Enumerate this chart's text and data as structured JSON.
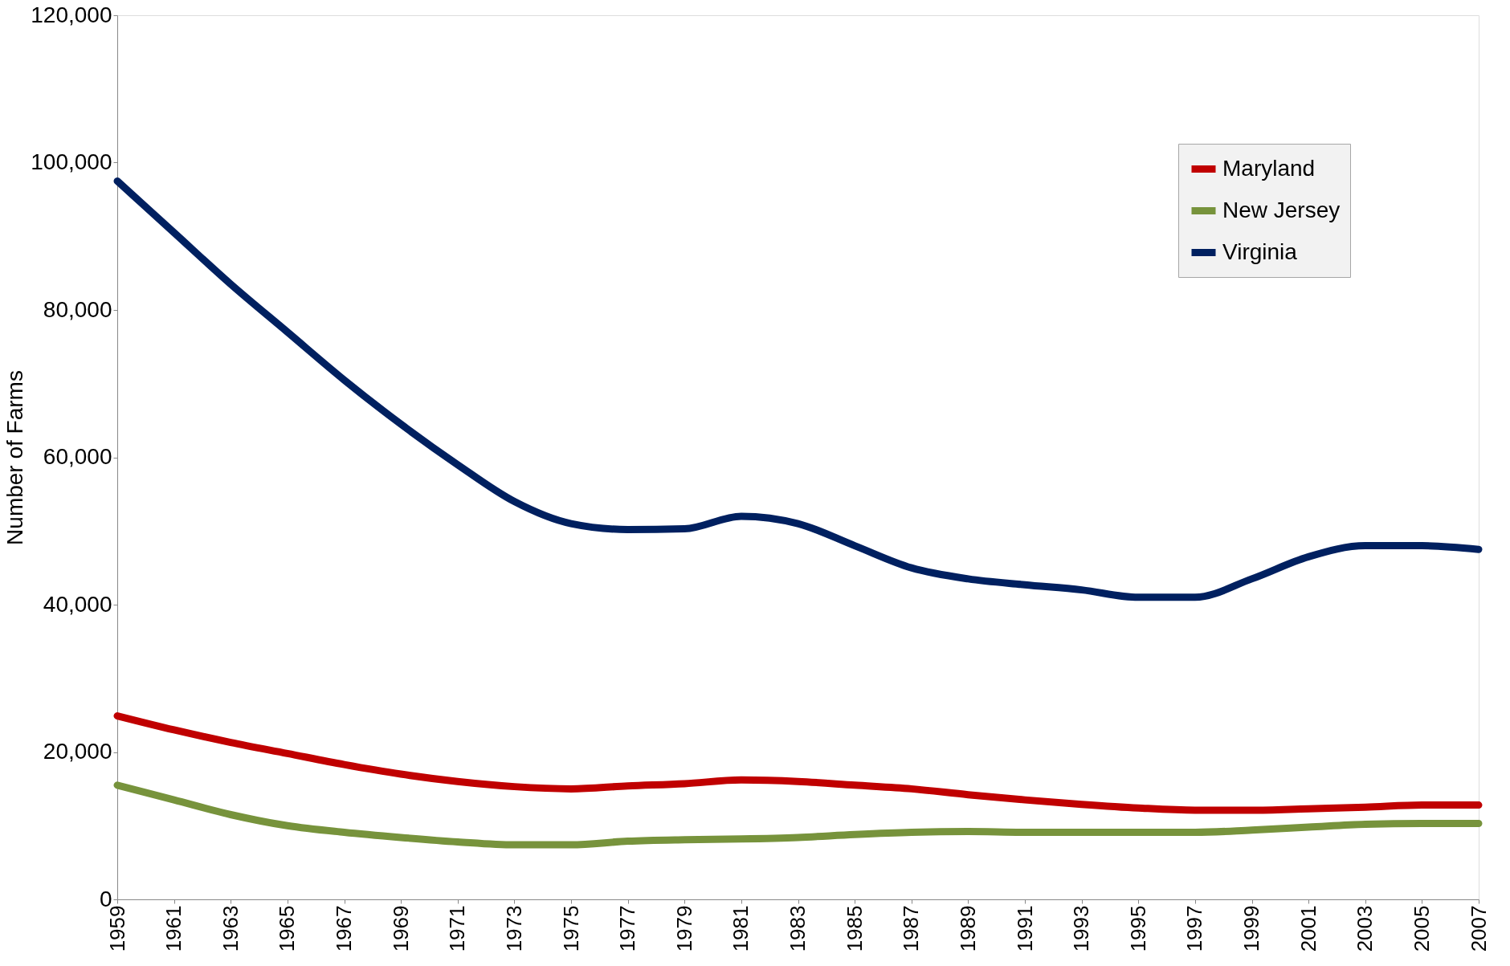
{
  "chart_data": {
    "type": "line",
    "ylabel": "Number of Farms",
    "categories": [
      "1959",
      "1961",
      "1963",
      "1965",
      "1967",
      "1969",
      "1971",
      "1973",
      "1975",
      "1977",
      "1979",
      "1981",
      "1983",
      "1985",
      "1987",
      "1989",
      "1991",
      "1993",
      "1995",
      "1997",
      "1999",
      "2001",
      "2003",
      "2005",
      "2007"
    ],
    "series": [
      {
        "name": "Maryland",
        "color": "#c00000",
        "values": [
          24900,
          23000,
          21300,
          19800,
          18300,
          17000,
          16000,
          15300,
          15000,
          15400,
          15700,
          16200,
          16000,
          15500,
          15000,
          14200,
          13500,
          12900,
          12400,
          12100,
          12100,
          12300,
          12500,
          12800,
          12800
        ]
      },
      {
        "name": "New Jersey",
        "color": "#77933c",
        "values": [
          15500,
          13500,
          11500,
          10000,
          9100,
          8400,
          7800,
          7400,
          7400,
          7900,
          8100,
          8200,
          8400,
          8800,
          9100,
          9200,
          9100,
          9100,
          9100,
          9100,
          9400,
          9800,
          10200,
          10300,
          10300
        ]
      },
      {
        "name": "Virginia",
        "color": "#002060",
        "values": [
          97500,
          90500,
          83500,
          77000,
          70500,
          64500,
          59000,
          54000,
          51000,
          50200,
          50300,
          52000,
          51000,
          48000,
          45000,
          43500,
          42700,
          42000,
          41000,
          41000,
          43500,
          46500,
          48000,
          48000,
          47500
        ]
      }
    ],
    "ylim": [
      0,
      120000
    ],
    "yticks": [
      0,
      {
        "value": 20000,
        "label": "20,000"
      },
      {
        "value": 40000,
        "label": "40,000"
      },
      {
        "value": 60000,
        "label": "60,000"
      },
      {
        "value": 80000,
        "label": "80,000"
      },
      {
        "value": 100000,
        "label": "100,000"
      },
      {
        "value": 120000,
        "label": "120,000"
      }
    ],
    "grid": false,
    "legend": "top right",
    "marker": "none",
    "line_style": "solid"
  }
}
